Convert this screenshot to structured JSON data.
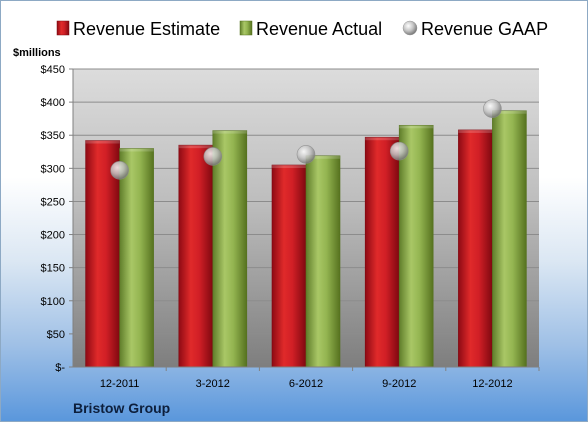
{
  "chart_data": {
    "type": "bar",
    "unit_label": "$millions",
    "company": "Bristow Group",
    "categories": [
      "12-2011",
      "3-2012",
      "6-2012",
      "9-2012",
      "12-2012"
    ],
    "y_ticks": [
      "$-",
      "$50",
      "$100",
      "$150",
      "$200",
      "$250",
      "$300",
      "$350",
      "$400",
      "$450"
    ],
    "ylim": [
      0,
      450
    ],
    "grid": true,
    "legend_position": "top",
    "series": [
      {
        "name": "Revenue Estimate",
        "type": "bar",
        "color": "#c8102e",
        "values": [
          342,
          335,
          305,
          347,
          358
        ]
      },
      {
        "name": "Revenue Actual",
        "type": "bar",
        "color": "#8fb04a",
        "values": [
          330,
          357,
          319,
          365,
          387
        ]
      },
      {
        "name": "Revenue GAAP",
        "type": "marker",
        "color": "#b3b3b3",
        "values": [
          297,
          318,
          321,
          326,
          390
        ]
      }
    ]
  }
}
